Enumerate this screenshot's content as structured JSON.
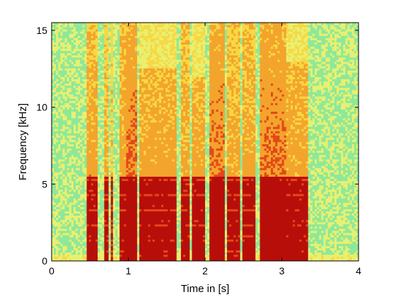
{
  "chart_data": {
    "type": "heatmap",
    "title": "",
    "xlabel": "Time in [s]",
    "ylabel": "Frequency [kHz]",
    "xlim": [
      0,
      4
    ],
    "ylim": [
      0,
      15.5
    ],
    "xticks": [
      0,
      1,
      2,
      3,
      4
    ],
    "yticks": [
      0,
      5,
      10,
      15
    ],
    "colormap": [
      "#4fd6a8",
      "#8ee89a",
      "#e8f070",
      "#f7d844",
      "#f3a42c",
      "#e4481a",
      "#b80e0a"
    ],
    "grid": false,
    "segments": [
      {
        "t0": 0.45,
        "t1": 0.6,
        "fmax": 15.5,
        "intensity": 0.75
      },
      {
        "t0": 0.7,
        "t1": 0.73,
        "fmax": 15.5,
        "intensity": 0.65
      },
      {
        "t0": 0.77,
        "t1": 0.8,
        "fmax": 15.5,
        "intensity": 0.55
      },
      {
        "t0": 0.88,
        "t1": 0.98,
        "fmax": 15.5,
        "intensity": 0.75
      },
      {
        "t0": 0.98,
        "t1": 1.1,
        "fmax": 15.5,
        "intensity": 0.95
      },
      {
        "t0": 1.15,
        "t1": 1.62,
        "fmax": 12.5,
        "intensity": 0.75
      },
      {
        "t0": 1.7,
        "t1": 1.8,
        "fmax": 15.5,
        "intensity": 0.7
      },
      {
        "t0": 1.82,
        "t1": 2.0,
        "fmax": 12.0,
        "intensity": 0.75
      },
      {
        "t0": 2.05,
        "t1": 2.25,
        "fmax": 15.5,
        "intensity": 0.95
      },
      {
        "t0": 2.3,
        "t1": 2.45,
        "fmax": 15.5,
        "intensity": 0.7
      },
      {
        "t0": 2.5,
        "t1": 2.65,
        "fmax": 15.5,
        "intensity": 0.75
      },
      {
        "t0": 2.7,
        "t1": 3.05,
        "fmax": 15.5,
        "intensity": 0.95
      },
      {
        "t0": 3.05,
        "t1": 3.35,
        "fmax": 13.0,
        "intensity": 0.75
      }
    ]
  }
}
